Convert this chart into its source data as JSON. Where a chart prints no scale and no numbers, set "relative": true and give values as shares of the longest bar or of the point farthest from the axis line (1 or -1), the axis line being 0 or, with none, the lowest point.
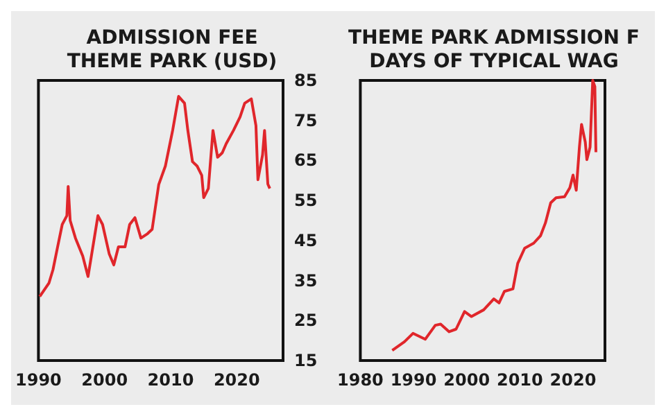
{
  "chart_data": [
    {
      "type": "line",
      "title": "ADMISSION FEE\nTHEME PARK (USD)",
      "color": "#e0262b",
      "x": [
        1990.2,
        1991.6,
        1992.2,
        1992.9,
        1993.6,
        1994.3,
        1994.5,
        1994.8,
        1995.6,
        1996.7,
        1997.5,
        1998.0,
        1999.0,
        1999.7,
        2000.7,
        2001.4,
        2002.1,
        2003.1,
        2003.8,
        2004.6,
        2005.5,
        2006.5,
        2007.2,
        2008.2,
        2009.2,
        2010.3,
        2011.2,
        2012.1,
        2012.6,
        2013.3,
        2014.0,
        2014.7,
        2015.0,
        2015.7,
        2016.4,
        2017.1,
        2017.8,
        2018.4,
        2019.5,
        2020.5,
        2021.2,
        2022.2,
        2022.9,
        2023.2,
        2023.9,
        2024.2,
        2024.7,
        2025.0
      ],
      "values": [
        31,
        34.4,
        37.7,
        43.4,
        49,
        51.2,
        58.5,
        50,
        45.6,
        41.1,
        36,
        41,
        51.2,
        49,
        41.7,
        38.9,
        43.4,
        43.4,
        49,
        50.7,
        45.6,
        46.7,
        47.8,
        59,
        63.6,
        72.5,
        81,
        79.3,
        72.5,
        64.7,
        63.6,
        61.3,
        55.7,
        58,
        72.5,
        65.8,
        66.9,
        69.2,
        72.5,
        75.9,
        79.3,
        80.4,
        73.7,
        60.2,
        66.4,
        72.5,
        59.1,
        58
      ],
      "xlim": [
        1990,
        2027
      ],
      "xticks": [
        1990,
        2000,
        2010,
        2020
      ],
      "ylim": [
        15,
        85
      ],
      "yticks": [
        15,
        25,
        35,
        45,
        55,
        65,
        75,
        85
      ]
    },
    {
      "type": "line",
      "title": "THEME PARK ADMISSION F\nDAYS OF TYPICAL WAG",
      "color": "#e0262b",
      "relative": true,
      "tick_labels": "x",
      "x": [
        1986.0,
        1988.3,
        1989.9,
        1992.2,
        1994.1,
        1995.1,
        1996.7,
        1998.0,
        1999.6,
        2000.9,
        2003.2,
        2005.1,
        2006.1,
        2007.1,
        2008.7,
        2009.6,
        2010.9,
        2012.6,
        2013.9,
        2014.8,
        2015.8,
        2016.8,
        2018.4,
        2019.4,
        2020.0,
        2020.6,
        2021.2,
        2021.6,
        2022.3,
        2022.6,
        2023.2,
        2023.7,
        2024.1,
        2024.3
      ],
      "values": [
        0.036,
        0.067,
        0.097,
        0.076,
        0.126,
        0.13,
        0.103,
        0.112,
        0.175,
        0.157,
        0.181,
        0.22,
        0.206,
        0.247,
        0.256,
        0.347,
        0.401,
        0.419,
        0.446,
        0.491,
        0.563,
        0.581,
        0.585,
        0.617,
        0.662,
        0.608,
        0.762,
        0.843,
        0.78,
        0.717,
        0.762,
        1,
        0.978,
        0.744
      ],
      "xlim": [
        1980,
        2026
      ],
      "xticks": [
        1980,
        1990,
        2000,
        2010,
        2020
      ]
    }
  ]
}
